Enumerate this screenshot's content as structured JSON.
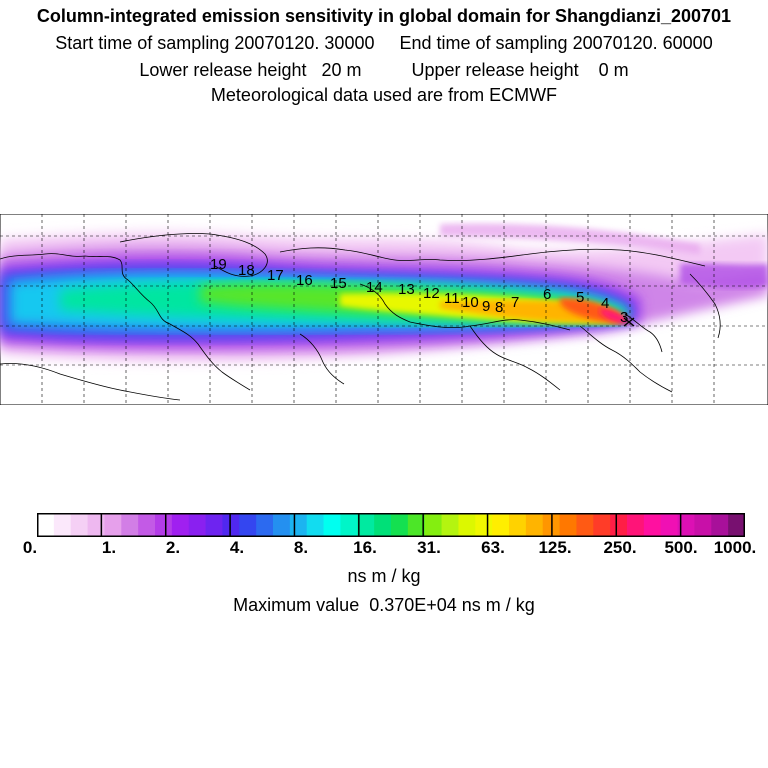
{
  "header": {
    "title": "Column-integrated emission sensitivity in global domain for Shangdianzi_200701",
    "line2": "Start time of sampling 20070120. 30000     End time of sampling 20070120. 60000",
    "line3": "Lower release height   20 m          Upper release height    0 m",
    "line4": "Meteorological data used are from ECMWF"
  },
  "map": {
    "trajectory_labels": [
      "3",
      "4",
      "5",
      "6",
      "7",
      "8",
      "9",
      "10",
      "11",
      "12",
      "13",
      "14",
      "15",
      "16",
      "17",
      "18",
      "19"
    ]
  },
  "colorbar": {
    "tick_labels": [
      "0.",
      "1.",
      "2.",
      "4.",
      "8.",
      "16.",
      "31.",
      "63.",
      "125.",
      "250.",
      "500.",
      "1000."
    ],
    "colors": [
      "#ffffff",
      "#fbe8fb",
      "#f5d0f5",
      "#eeb8f0",
      "#e6a0eb",
      "#d27ee6",
      "#c35ae6",
      "#b43ce8",
      "#a020f0",
      "#8a20f0",
      "#6e24f0",
      "#5028f0",
      "#3446f0",
      "#2c6af0",
      "#2490f0",
      "#1cb4f0",
      "#12dcf0",
      "#00fff0",
      "#00f5c8",
      "#00eaa0",
      "#00e078",
      "#14e050",
      "#4ce628",
      "#84ee10",
      "#b4f410",
      "#dcf800",
      "#f0f800",
      "#ffee00",
      "#ffd200",
      "#ffb400",
      "#ff9600",
      "#ff7800",
      "#ff5a14",
      "#ff3c28",
      "#ff1e46",
      "#ff1478",
      "#ff10a0",
      "#f010b4",
      "#dc10b4",
      "#c810a8",
      "#a8109a",
      "#781070"
    ],
    "unit_label": "ns m / kg",
    "max_label": "Maximum value  0.370E+04 ns m / kg"
  }
}
